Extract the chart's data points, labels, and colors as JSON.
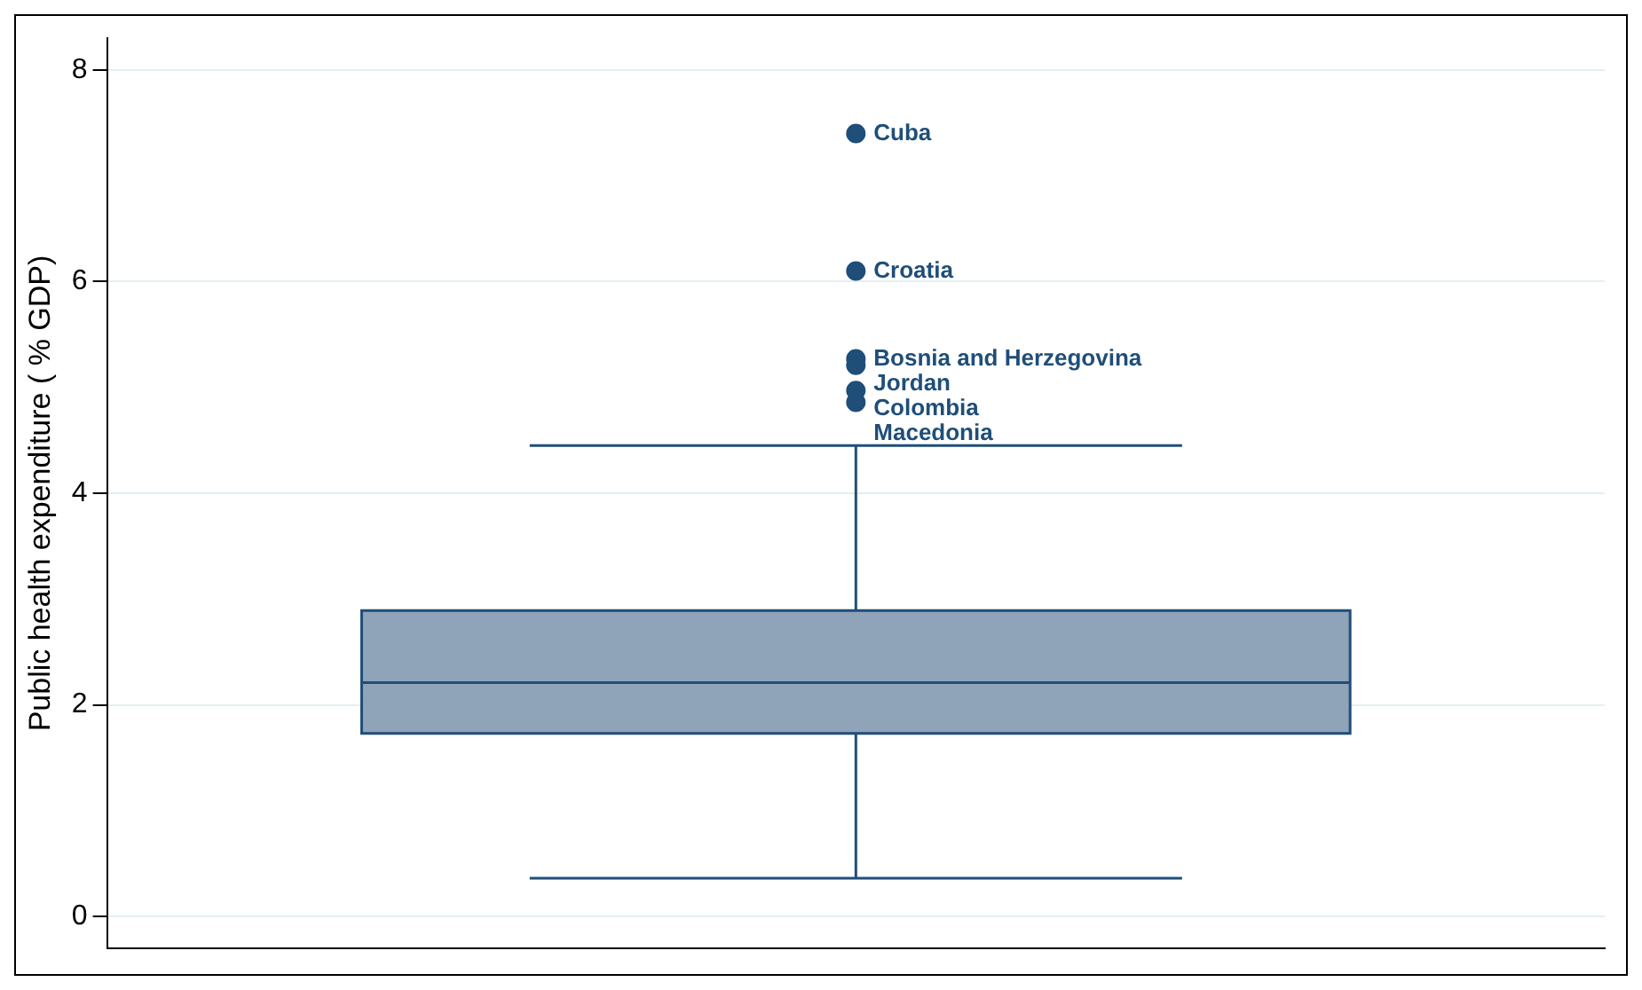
{
  "chart_data": {
    "type": "box",
    "ylabel": "Public health expenditure ( % GDP)",
    "categories": [
      null
    ],
    "boxes": [
      {
        "low": 0.36,
        "q1": 1.73,
        "median": 2.21,
        "q3": 2.89,
        "high": 4.45,
        "outliers": [
          7.4,
          6.1,
          5.27,
          5.21,
          4.97,
          4.86
        ]
      }
    ],
    "color": "#8fa3b9",
    "marker": "circle",
    "annotations": [
      "Cuba",
      "Croatia",
      "Bosnia and Herzegovina",
      "Jordan",
      "Colombia",
      "Macedonia"
    ],
    "ylim": [
      -0.3,
      8.3
    ],
    "yticks": [
      0,
      2,
      4,
      6,
      8
    ],
    "grid": "y",
    "tick_labels": "y"
  }
}
